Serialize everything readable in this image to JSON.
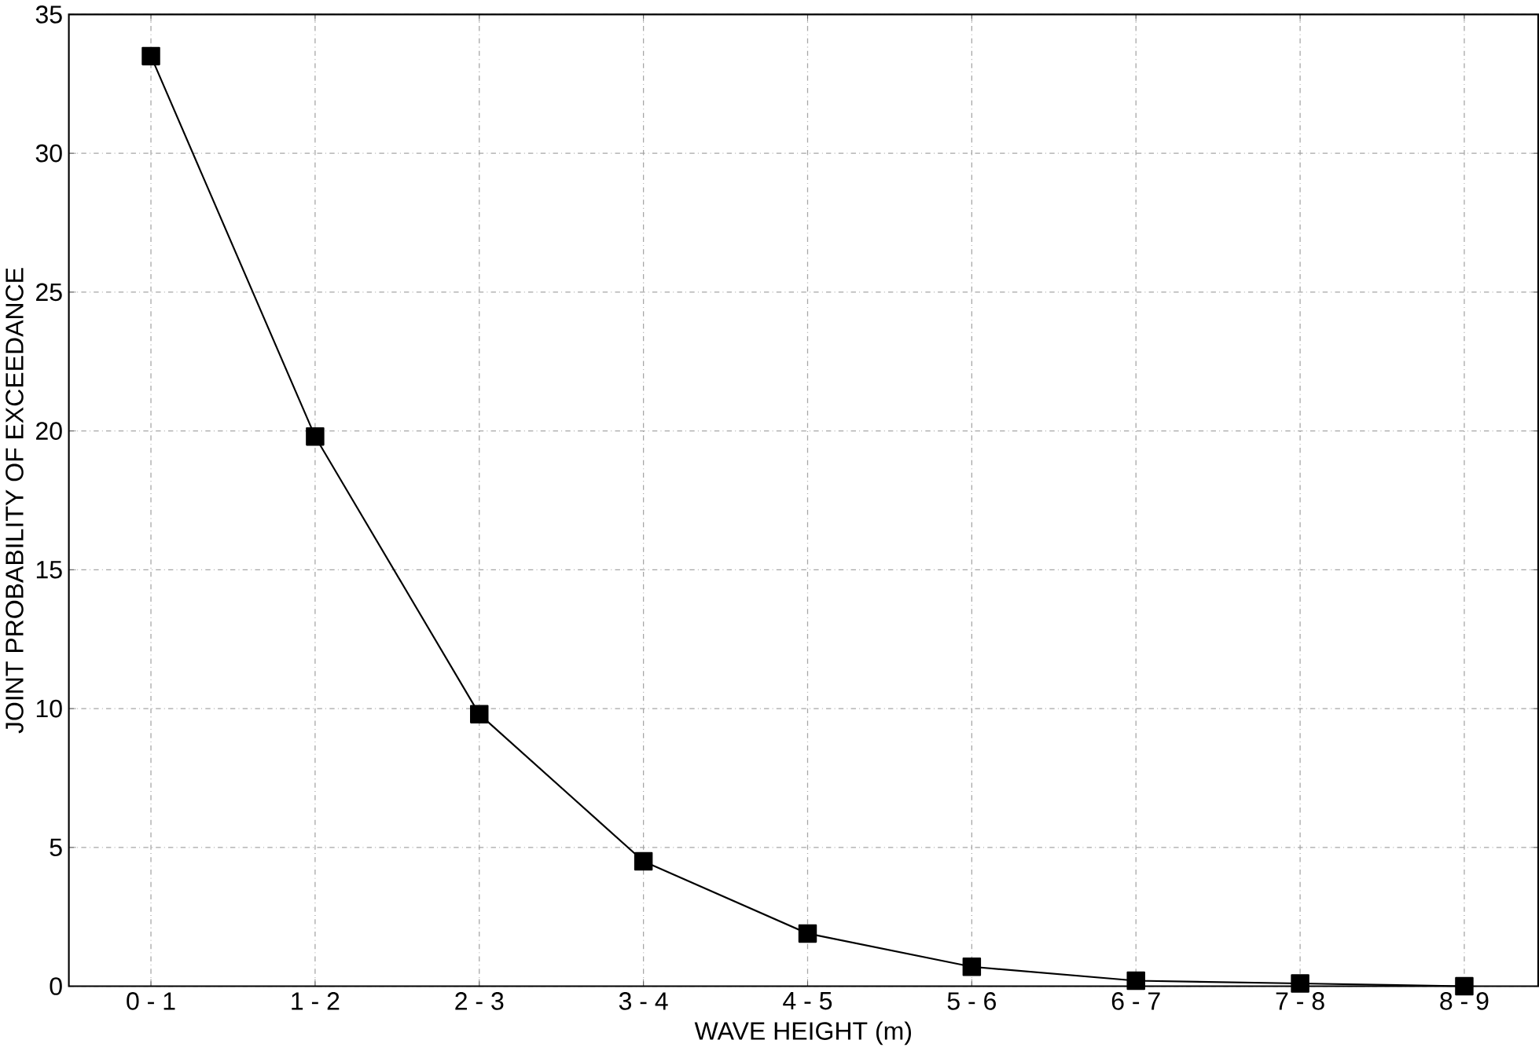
{
  "chart_data": {
    "type": "line",
    "xlabel": "WAVE HEIGHT (m)",
    "ylabel": "JOINT PROBABILITY OF EXCEEDANCE",
    "categories": [
      "0 - 1",
      "1 - 2",
      "2 - 3",
      "3 - 4",
      "4 - 5",
      "5 - 6",
      "6 - 7",
      "7 - 8",
      "8 - 9"
    ],
    "series": [
      {
        "color": "#000000",
        "values": [
          33.5,
          19.8,
          9.8,
          4.5,
          1.9,
          0.7,
          0.2,
          0.1,
          0.0
        ]
      }
    ],
    "ylim": [
      0,
      35
    ],
    "yticks": [
      0,
      5,
      10,
      15,
      20,
      25,
      30,
      35
    ],
    "grid": true,
    "marker": "square",
    "line_style": "solid"
  }
}
